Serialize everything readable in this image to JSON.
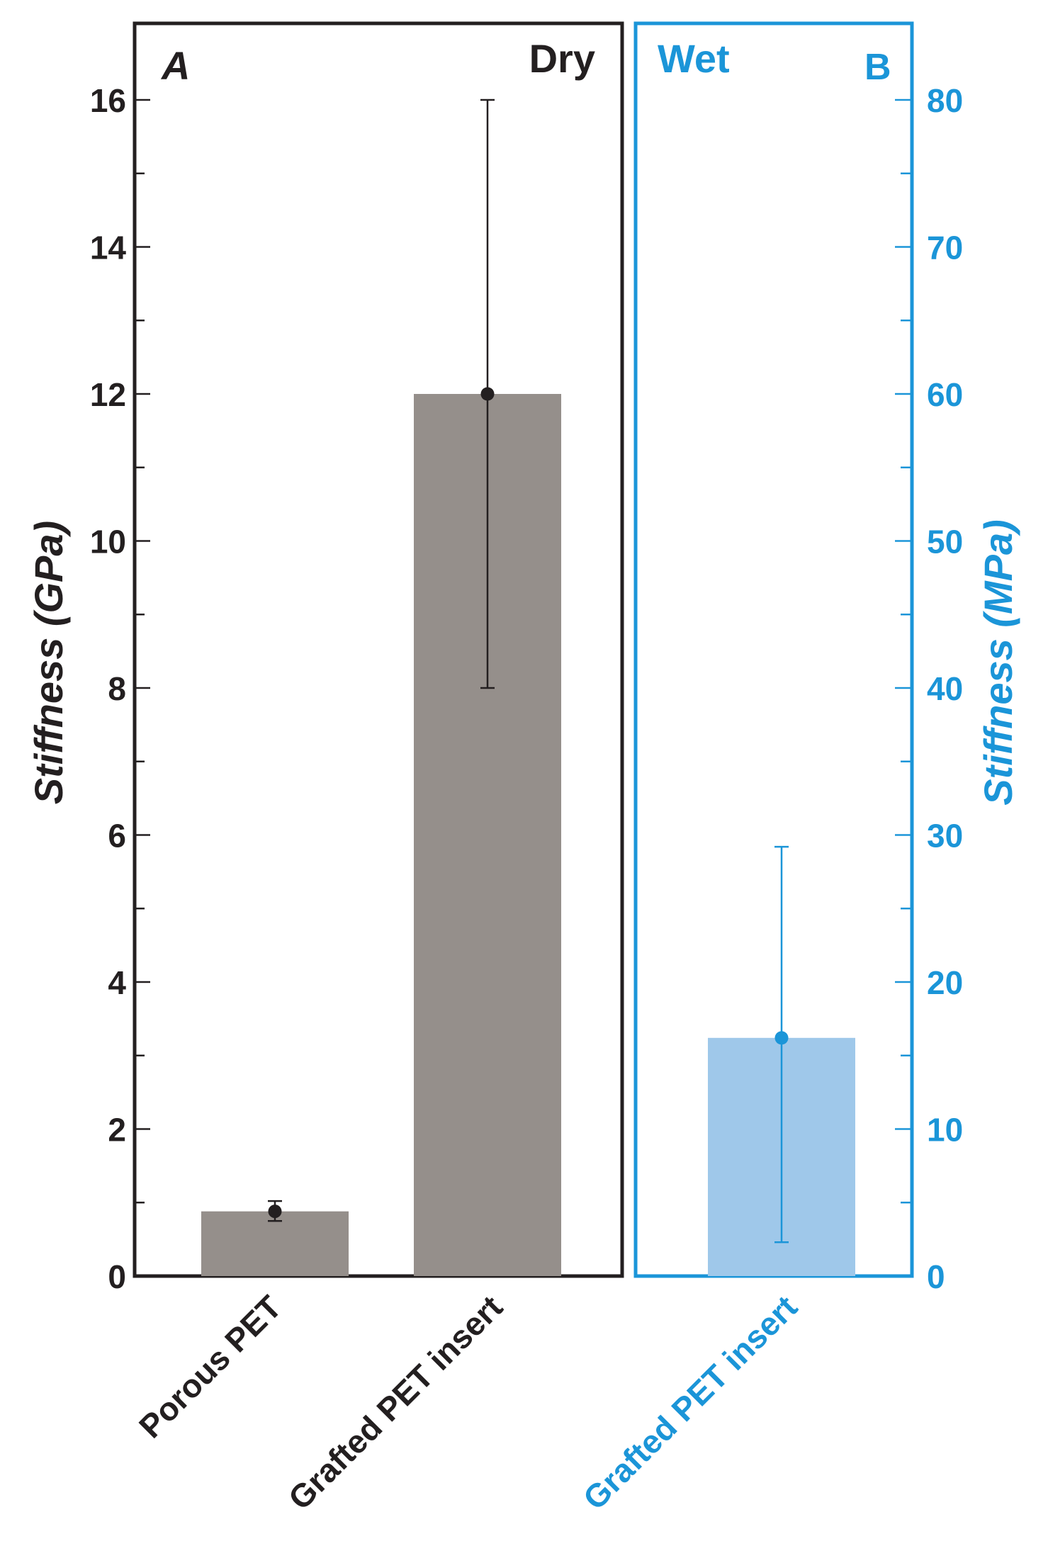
{
  "chart_data": [
    {
      "panel": "A",
      "condition": "Dry",
      "type": "bar",
      "ylabel": "Stiffness (GPa)",
      "ylim": [
        0,
        17
      ],
      "yticks": [
        0,
        2,
        4,
        6,
        8,
        10,
        12,
        14,
        16
      ],
      "categories": [
        "Porous PET",
        "Grafted PET insert"
      ],
      "values": [
        0.88,
        12.0
      ],
      "error": [
        [
          0.75,
          1.02
        ],
        [
          8.0,
          16.0
        ]
      ],
      "color": "#958f8b",
      "axis_color": "#231f20"
    },
    {
      "panel": "B",
      "condition": "Wet",
      "type": "bar",
      "ylabel": "Stiffness (MPa)",
      "ylim": [
        0,
        85
      ],
      "yticks": [
        0,
        10,
        20,
        30,
        40,
        50,
        60,
        70,
        80
      ],
      "categories": [
        "Grafted PET insert"
      ],
      "values": [
        16.2
      ],
      "error": [
        [
          2.3,
          29.2
        ]
      ],
      "color": "#9fc8ea",
      "axis_color": "#1b95d8"
    }
  ]
}
